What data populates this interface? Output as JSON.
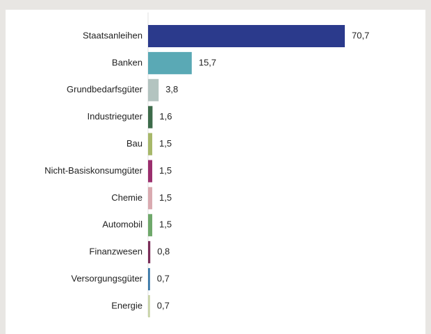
{
  "chart_data": {
    "type": "bar",
    "orientation": "horizontal",
    "categories": [
      "Staatsanleihen",
      "Banken",
      "Grundbedarfsgüter",
      "Industrieguter",
      "Bau",
      "Nicht-Basiskonsumgüter",
      "Chemie",
      "Automobil",
      "Finanzwesen",
      "Versorgungsgüter",
      "Energie"
    ],
    "values": [
      70.7,
      15.7,
      3.8,
      1.6,
      1.5,
      1.5,
      1.5,
      1.5,
      0.8,
      0.7,
      0.7
    ],
    "value_labels": [
      "70,7",
      "15,7",
      "3,8",
      "1,6",
      "1,5",
      "1,5",
      "1,5",
      "1,5",
      "0,8",
      "0,7",
      "0,7"
    ],
    "colors": [
      "#2b3a8c",
      "#5aa9b5",
      "#b3c4c0",
      "#3d6b4a",
      "#a7b86a",
      "#9b2f6e",
      "#d9aab0",
      "#6fa86b",
      "#7a2d58",
      "#3a78a8",
      "#c9d4a8"
    ]
  }
}
